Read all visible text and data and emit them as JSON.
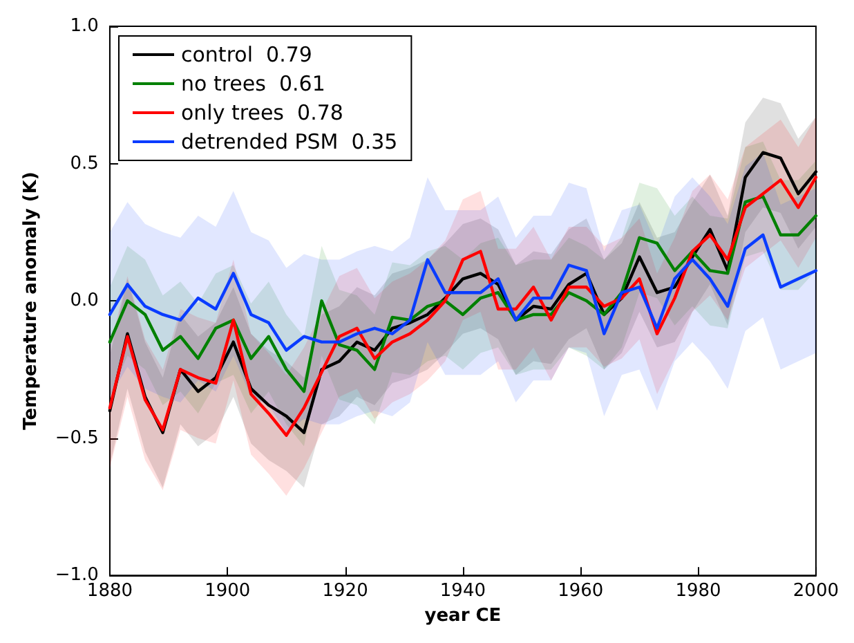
{
  "chart_data": {
    "type": "line",
    "xlabel": "year CE",
    "ylabel": "Temperature anomaly (K)",
    "x": [
      1880,
      1883,
      1886,
      1889,
      1892,
      1895,
      1898,
      1901,
      1904,
      1907,
      1910,
      1913,
      1916,
      1919,
      1922,
      1925,
      1928,
      1931,
      1934,
      1937,
      1940,
      1943,
      1946,
      1949,
      1952,
      1955,
      1958,
      1961,
      1964,
      1967,
      1970,
      1973,
      1976,
      1979,
      1982,
      1985,
      1988,
      1991,
      1994,
      1997,
      2000
    ],
    "xlim": [
      1880,
      2000
    ],
    "xticks": [
      1880,
      1900,
      1920,
      1940,
      1960,
      1980,
      2000
    ],
    "ylim": [
      -1,
      1
    ],
    "yticks": [
      {
        "value": -1,
        "label": "−1.0"
      },
      {
        "value": -0.5,
        "label": "−0.5"
      },
      {
        "value": 0,
        "label": "0.0"
      },
      {
        "value": 0.5,
        "label": "0.5"
      },
      {
        "value": 1,
        "label": "1.0"
      }
    ],
    "legend": "top left",
    "grid": false,
    "marker": "none",
    "line_style": "solid",
    "series": [
      {
        "name": "control  0.79",
        "color": "#000000",
        "values": [
          -0.4,
          -0.12,
          -0.35,
          -0.48,
          -0.25,
          -0.33,
          -0.28,
          -0.15,
          -0.32,
          -0.38,
          -0.42,
          -0.48,
          -0.25,
          -0.22,
          -0.15,
          -0.18,
          -0.1,
          -0.08,
          -0.05,
          0.01,
          0.08,
          0.1,
          0.06,
          -0.07,
          -0.02,
          -0.03,
          0.06,
          0.1,
          -0.05,
          0.01,
          0.16,
          0.03,
          0.05,
          0.16,
          0.26,
          0.11,
          0.45,
          0.54,
          0.52,
          0.39,
          0.47
        ],
        "lower": [
          -0.6,
          -0.32,
          -0.55,
          -0.68,
          -0.45,
          -0.53,
          -0.48,
          -0.35,
          -0.52,
          -0.58,
          -0.62,
          -0.68,
          -0.45,
          -0.42,
          -0.35,
          -0.38,
          -0.3,
          -0.28,
          -0.25,
          -0.19,
          -0.12,
          -0.1,
          -0.14,
          -0.27,
          -0.22,
          -0.23,
          -0.14,
          -0.1,
          -0.25,
          -0.19,
          -0.04,
          -0.17,
          -0.15,
          -0.04,
          0.06,
          -0.09,
          0.25,
          0.34,
          0.32,
          0.19,
          0.27
        ],
        "upper": [
          -0.2,
          0.08,
          -0.15,
          -0.28,
          -0.05,
          -0.13,
          -0.08,
          0.05,
          -0.12,
          -0.18,
          -0.22,
          -0.28,
          -0.05,
          -0.02,
          0.05,
          0.02,
          0.1,
          0.12,
          0.15,
          0.21,
          0.28,
          0.3,
          0.26,
          0.13,
          0.18,
          0.17,
          0.26,
          0.3,
          0.15,
          0.21,
          0.36,
          0.23,
          0.25,
          0.36,
          0.46,
          0.31,
          0.65,
          0.74,
          0.72,
          0.59,
          0.67
        ]
      },
      {
        "name": "no trees  0.61",
        "color": "#008000",
        "values": [
          -0.15,
          0.0,
          -0.05,
          -0.18,
          -0.13,
          -0.21,
          -0.1,
          -0.07,
          -0.21,
          -0.13,
          -0.25,
          -0.33,
          0.0,
          -0.16,
          -0.18,
          -0.25,
          -0.06,
          -0.07,
          -0.02,
          0.0,
          -0.05,
          0.01,
          0.03,
          -0.07,
          -0.05,
          -0.05,
          0.03,
          0.0,
          -0.05,
          0.03,
          0.23,
          0.21,
          0.11,
          0.18,
          0.11,
          0.1,
          0.36,
          0.38,
          0.24,
          0.24,
          0.31
        ],
        "lower": [
          -0.35,
          -0.2,
          -0.25,
          -0.38,
          -0.33,
          -0.41,
          -0.3,
          -0.27,
          -0.41,
          -0.33,
          -0.45,
          -0.53,
          -0.2,
          -0.36,
          -0.38,
          -0.45,
          -0.26,
          -0.27,
          -0.22,
          -0.2,
          -0.25,
          -0.19,
          -0.17,
          -0.27,
          -0.25,
          -0.25,
          -0.17,
          -0.2,
          -0.25,
          -0.17,
          0.03,
          0.01,
          -0.09,
          -0.02,
          -0.09,
          -0.1,
          0.16,
          0.18,
          0.04,
          0.04,
          0.11
        ],
        "upper": [
          0.05,
          0.2,
          0.15,
          0.02,
          0.07,
          -0.01,
          0.1,
          0.13,
          -0.01,
          0.07,
          -0.05,
          -0.13,
          0.2,
          0.04,
          0.02,
          -0.05,
          0.14,
          0.13,
          0.18,
          0.2,
          0.15,
          0.21,
          0.23,
          0.13,
          0.15,
          0.15,
          0.23,
          0.2,
          0.15,
          0.23,
          0.43,
          0.41,
          0.31,
          0.38,
          0.31,
          0.3,
          0.56,
          0.58,
          0.44,
          0.44,
          0.51
        ]
      },
      {
        "name": "only trees  0.78",
        "color": "#ff0000",
        "values": [
          -0.39,
          -0.13,
          -0.36,
          -0.47,
          -0.25,
          -0.28,
          -0.3,
          -0.07,
          -0.34,
          -0.41,
          -0.49,
          -0.39,
          -0.26,
          -0.13,
          -0.1,
          -0.21,
          -0.15,
          -0.12,
          -0.07,
          0.0,
          0.15,
          0.18,
          -0.03,
          -0.03,
          0.05,
          -0.07,
          0.05,
          0.05,
          -0.02,
          0.01,
          0.08,
          -0.12,
          0.01,
          0.18,
          0.24,
          0.15,
          0.34,
          0.39,
          0.44,
          0.34,
          0.45
        ],
        "lower": [
          -0.61,
          -0.35,
          -0.58,
          -0.69,
          -0.47,
          -0.5,
          -0.52,
          -0.29,
          -0.56,
          -0.63,
          -0.71,
          -0.61,
          -0.48,
          -0.35,
          -0.32,
          -0.43,
          -0.37,
          -0.34,
          -0.29,
          -0.22,
          -0.07,
          -0.04,
          -0.25,
          -0.25,
          -0.17,
          -0.29,
          -0.17,
          -0.17,
          -0.24,
          -0.21,
          -0.14,
          -0.34,
          -0.21,
          -0.04,
          0.02,
          -0.07,
          0.12,
          0.17,
          0.22,
          0.12,
          0.23
        ],
        "upper": [
          -0.17,
          0.09,
          -0.14,
          -0.25,
          -0.03,
          -0.06,
          -0.08,
          0.15,
          -0.12,
          -0.19,
          -0.27,
          -0.17,
          -0.04,
          0.09,
          0.12,
          0.01,
          0.07,
          0.1,
          0.15,
          0.22,
          0.37,
          0.4,
          0.19,
          0.19,
          0.27,
          0.15,
          0.27,
          0.27,
          0.2,
          0.23,
          0.3,
          0.1,
          0.23,
          0.4,
          0.46,
          0.37,
          0.56,
          0.61,
          0.66,
          0.56,
          0.67
        ]
      },
      {
        "name": "detrended PSM  0.35",
        "color": "#0a3cff",
        "values": [
          -0.05,
          0.06,
          -0.02,
          -0.05,
          -0.07,
          0.01,
          -0.03,
          0.1,
          -0.05,
          -0.08,
          -0.18,
          -0.13,
          -0.15,
          -0.15,
          -0.12,
          -0.1,
          -0.12,
          -0.07,
          0.15,
          0.03,
          0.03,
          0.03,
          0.08,
          -0.07,
          0.01,
          0.01,
          0.13,
          0.11,
          -0.12,
          0.03,
          0.05,
          -0.1,
          0.08,
          0.15,
          0.08,
          -0.02,
          0.19,
          0.24,
          0.05,
          0.08,
          0.11
        ],
        "lower": [
          -0.35,
          -0.24,
          -0.32,
          -0.35,
          -0.37,
          -0.29,
          -0.33,
          -0.2,
          -0.35,
          -0.38,
          -0.48,
          -0.43,
          -0.45,
          -0.45,
          -0.42,
          -0.4,
          -0.42,
          -0.37,
          -0.15,
          -0.27,
          -0.27,
          -0.27,
          -0.22,
          -0.37,
          -0.29,
          -0.29,
          -0.17,
          -0.19,
          -0.42,
          -0.27,
          -0.25,
          -0.4,
          -0.22,
          -0.15,
          -0.22,
          -0.32,
          -0.11,
          -0.06,
          -0.25,
          -0.22,
          -0.19
        ],
        "upper": [
          0.25,
          0.36,
          0.28,
          0.25,
          0.23,
          0.31,
          0.27,
          0.4,
          0.25,
          0.22,
          0.12,
          0.17,
          0.15,
          0.15,
          0.18,
          0.2,
          0.18,
          0.23,
          0.45,
          0.33,
          0.33,
          0.33,
          0.38,
          0.23,
          0.31,
          0.31,
          0.43,
          0.41,
          0.18,
          0.33,
          0.35,
          0.2,
          0.38,
          0.45,
          0.38,
          0.28,
          0.49,
          0.54,
          0.35,
          0.38,
          0.41
        ]
      }
    ]
  }
}
